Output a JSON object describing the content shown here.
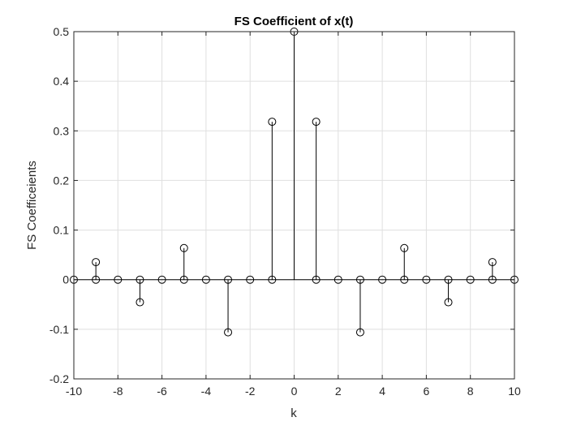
{
  "chart_data": {
    "type": "stem",
    "title": "FS Coefficient of x(t)",
    "xlabel": "k",
    "ylabel": "FS Coefficeients",
    "xlim": [
      -10,
      10
    ],
    "ylim": [
      -0.2,
      0.5
    ],
    "xticks": [
      -10,
      -8,
      -6,
      -4,
      -2,
      0,
      2,
      4,
      6,
      8,
      10
    ],
    "yticks": [
      -0.2,
      -0.1,
      0,
      0.1,
      0.2,
      0.3,
      0.4,
      0.5
    ],
    "xtick_labels": [
      "-10",
      "-8",
      "-6",
      "-4",
      "-2",
      "0",
      "2",
      "4",
      "6",
      "8",
      "10"
    ],
    "ytick_labels": [
      "-0.2",
      "-0.1",
      "0",
      "0.1",
      "0.2",
      "0.3",
      "0.4",
      "0.5"
    ],
    "grid": true,
    "x": [
      -10,
      -9,
      -8,
      -7,
      -6,
      -5,
      -4,
      -3,
      -2,
      -1,
      0,
      1,
      2,
      3,
      4,
      5,
      6,
      7,
      8,
      9,
      10
    ],
    "y": [
      0,
      0.0354,
      0,
      -0.0455,
      0,
      0.0637,
      0,
      -0.1061,
      0,
      0.3183,
      0.5,
      0.3183,
      0,
      -0.1061,
      0,
      0.0637,
      0,
      -0.0455,
      0,
      0.0354,
      0
    ],
    "baseline_markers_x": [
      -9,
      -7,
      -5,
      -3,
      -1,
      1,
      3,
      5,
      7,
      9
    ],
    "colors": {
      "stem": "#000000",
      "axes": "#262626",
      "grid": "#dfdfdf"
    }
  }
}
